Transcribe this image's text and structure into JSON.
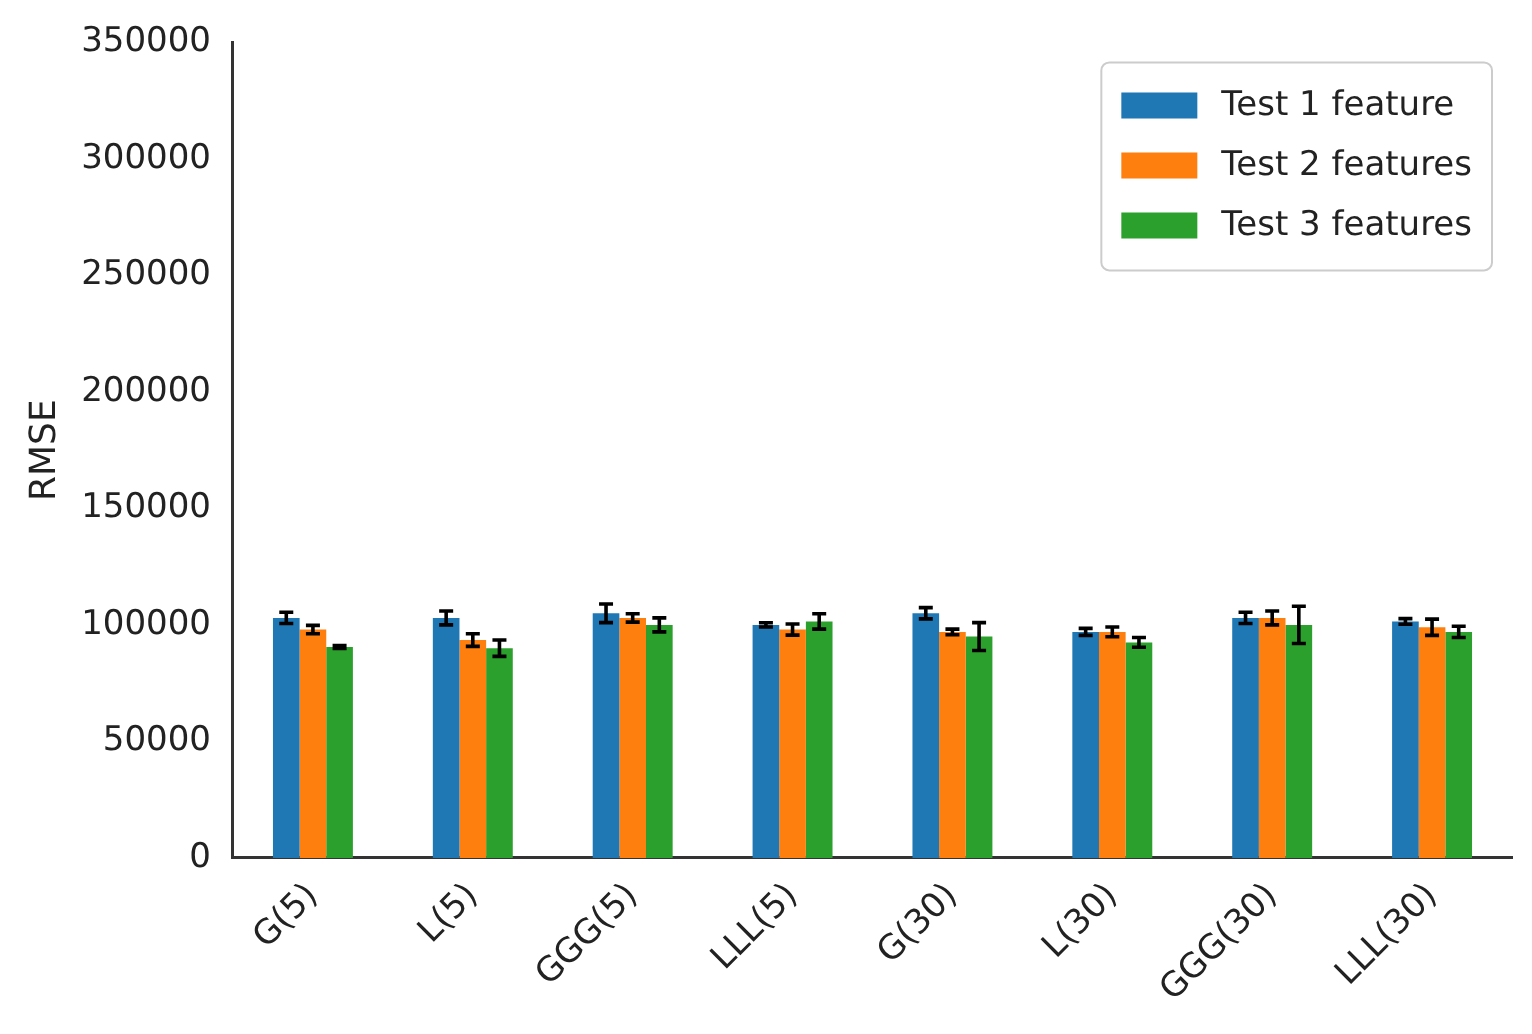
{
  "chart_data": {
    "type": "bar",
    "ylabel": "RMSE",
    "categories": [
      "G(5)",
      "L(5)",
      "GGG(5)",
      "LLL(5)",
      "G(30)",
      "L(30)",
      "GGG(30)",
      "LLL(30)"
    ],
    "series": [
      {
        "name": "Test 1 feature",
        "color": "#1f77b4",
        "values": [
          103000,
          103000,
          105000,
          100000,
          105000,
          97000,
          103000,
          101500
        ],
        "errors": [
          2400,
          3000,
          4000,
          900,
          2400,
          1500,
          2400,
          1200
        ]
      },
      {
        "name": "Test 2 features",
        "color": "#ff7f0e",
        "values": [
          98000,
          93500,
          103000,
          98000,
          97000,
          97000,
          103000,
          99000
        ],
        "errors": [
          1800,
          2700,
          1800,
          2400,
          1200,
          2100,
          3000,
          3500
        ]
      },
      {
        "name": "Test 3 features",
        "color": "#2ca02c",
        "values": [
          90500,
          90000,
          100000,
          101500,
          95000,
          92500,
          100000,
          97000
        ],
        "errors": [
          600,
          3500,
          3000,
          3300,
          6000,
          2100,
          8000,
          2400
        ]
      }
    ],
    "ylim": [
      0,
      350000
    ],
    "yticks": [
      0,
      50000,
      100000,
      150000,
      200000,
      250000,
      300000,
      350000
    ],
    "grid": false,
    "legend": "top right"
  }
}
